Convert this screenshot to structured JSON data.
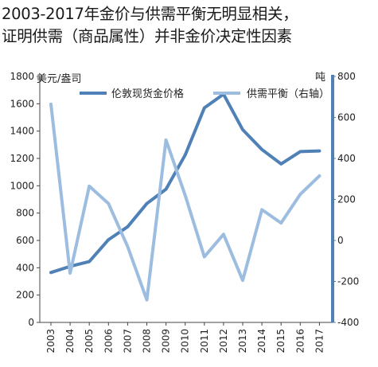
{
  "title_lines": [
    "2003-2017年金价与供需平衡无明显相关，",
    "证明供需（商品属性）并非金价决定性因素"
  ],
  "colors": {
    "price": "#4f81b7",
    "balance": "#9dbde0",
    "axis": "#4f81b7"
  },
  "chart_data": {
    "type": "line",
    "title": "2003-2017年金价与供需平衡无明显相关，证明供需（商品属性）并非金价决定性因素",
    "categories": [
      "2003",
      "2004",
      "2005",
      "2006",
      "2007",
      "2008",
      "2009",
      "2010",
      "2011",
      "2012",
      "2013",
      "2014",
      "2015",
      "2016",
      "2017"
    ],
    "y_unit_left": "美元/盎司",
    "y_unit_right": "吨",
    "ylim_left": [
      0,
      1800
    ],
    "ylim_right": [
      -400,
      800
    ],
    "yticks_left": [
      "0",
      "200",
      "400",
      "600",
      "800",
      "1000",
      "1200",
      "1400",
      "1600",
      "1800"
    ],
    "yticks_right": [
      "-400",
      "-200",
      "0",
      "200",
      "400",
      "600",
      "800"
    ],
    "legend_position": "top",
    "grid": false,
    "series": [
      {
        "name": "伦敦现货金价格",
        "axis": "left",
        "color": "#4f81b7",
        "values": [
          365,
          410,
          445,
          605,
          700,
          870,
          975,
          1225,
          1570,
          1670,
          1410,
          1265,
          1160,
          1250,
          1255
        ]
      },
      {
        "name": "供需平衡（右轴）",
        "axis": "right",
        "color": "#9dbde0",
        "values": [
          665,
          -160,
          265,
          180,
          -30,
          -290,
          490,
          220,
          -80,
          30,
          -195,
          150,
          85,
          225,
          315
        ]
      }
    ]
  }
}
